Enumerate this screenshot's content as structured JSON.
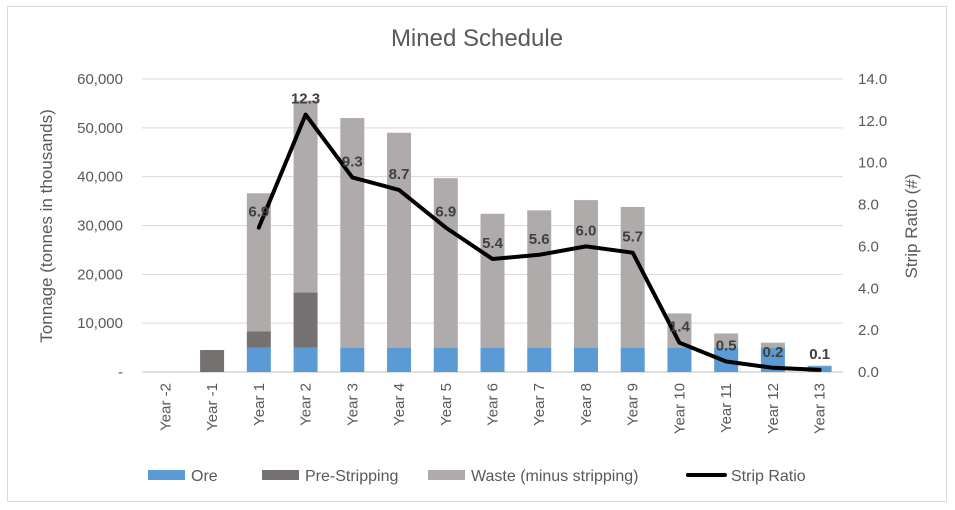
{
  "chart_data": {
    "type": "bar",
    "title": "Mined Schedule",
    "ylabel": "Tonnage (tonnes in thousands)",
    "y2label": "Strip Ratio (#)",
    "ylim": [
      0,
      60000
    ],
    "y2lim": [
      0,
      14
    ],
    "yticks": [
      "-",
      "10,000",
      "20,000",
      "30,000",
      "40,000",
      "50,000",
      "60,000"
    ],
    "y2ticks": [
      "0.0",
      "2.0",
      "4.0",
      "6.0",
      "8.0",
      "10.0",
      "12.0",
      "14.0"
    ],
    "categories": [
      "Year -2",
      "Year -1",
      "Year 1",
      "Year 2",
      "Year 3",
      "Year 4",
      "Year 5",
      "Year 6",
      "Year 7",
      "Year 8",
      "Year 9",
      "Year 10",
      "Year 11",
      "Year 12",
      "Year 13"
    ],
    "stacked": true,
    "grid": true,
    "legend_position": "bottom",
    "series": [
      {
        "name": "Ore",
        "type": "bar",
        "axis": "left",
        "color": "#5b9bd5",
        "values": [
          0,
          0,
          5000,
          5000,
          5000,
          5000,
          5000,
          5000,
          5000,
          5000,
          5000,
          5000,
          5000,
          5000,
          1200
        ]
      },
      {
        "name": "Pre-Stripping",
        "type": "bar",
        "axis": "left",
        "color": "#767171",
        "values": [
          0,
          4500,
          3300,
          11300,
          0,
          0,
          0,
          0,
          0,
          0,
          0,
          0,
          0,
          0,
          0
        ]
      },
      {
        "name": "Waste (minus stripping)",
        "type": "bar",
        "axis": "left",
        "color": "#afabab",
        "values": [
          0,
          0,
          28300,
          39300,
          47000,
          44000,
          34700,
          27400,
          28100,
          30200,
          28800,
          7000,
          2900,
          1000,
          100
        ]
      },
      {
        "name": "Strip Ratio",
        "type": "line",
        "axis": "right",
        "color": "#000000",
        "values": [
          null,
          null,
          6.9,
          12.3,
          9.3,
          8.7,
          6.9,
          5.4,
          5.6,
          6.0,
          5.7,
          1.4,
          0.5,
          0.2,
          0.1
        ],
        "labels": [
          "",
          "",
          "6.9",
          "12.3",
          "9.3",
          "8.7",
          "6.9",
          "5.4",
          "5.6",
          "6.0",
          "5.7",
          "1.4",
          "0.5",
          "0.2",
          "0.1"
        ]
      }
    ]
  }
}
